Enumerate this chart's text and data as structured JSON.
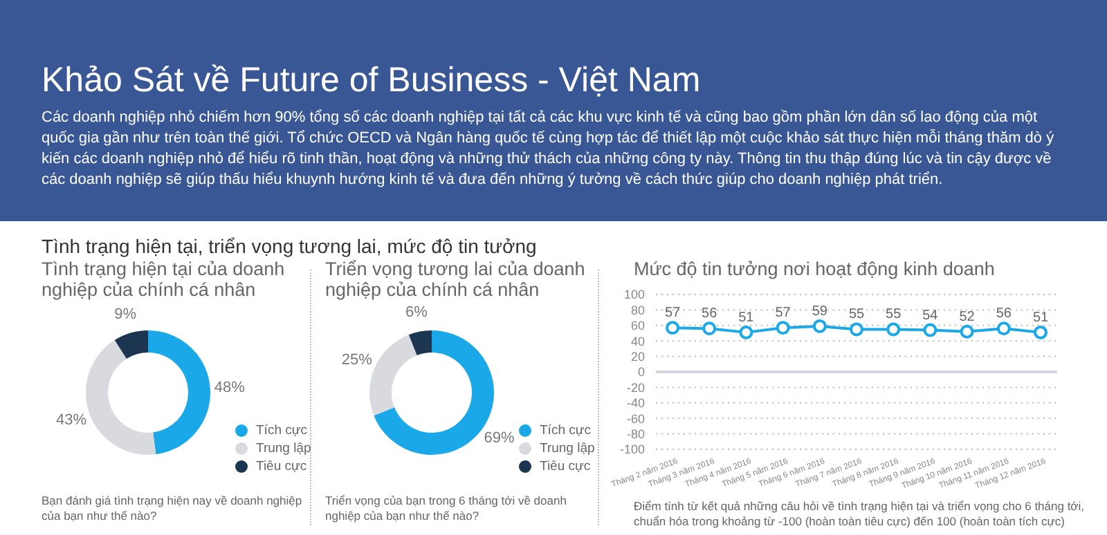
{
  "chart_data": [
    {
      "type": "other",
      "title": "Khảo Sát về Future of Business - Việt Nam",
      "subtitle": "Các doanh nghiệp nhỏ chiếm hơn 90% tổng số các doanh nghiệp tại tất cả các khu vực kinh tế và cũng bao gồm phần lớn dân số lao động của một quốc gia gần như trên toàn thế giới. Tổ chức OECD và Ngân hàng quốc tế cùng hợp tác để thiết lập một cuộc khảo sát thực hiện mỗi tháng thăm dò ý kiến các doanh nghiệp nhỏ để hiểu rõ tinh thần, hoạt động và những thử thách của những công ty này. Thông tin thu thập đúng lúc và tin cậy được về các doanh nghiệp sẽ giúp thấu hiểu khuynh hướng kinh tế và đưa đến những ý tưởng về cách thức giúp cho doanh nghiệp phát triển.",
      "annotations": [
        "Tình trạng hiện tại, triển vọng tương lai, mức độ tin tưởng"
      ]
    },
    {
      "type": "donut",
      "title": "Tình trạng hiện tại của doanh nghiệp của chính cá nhân",
      "categories": [
        "Tích cực",
        "Trung lập",
        "Tiêu cực"
      ],
      "values": [
        48,
        43,
        9
      ],
      "colors": [
        "#1aa8e8",
        "#d9dadf",
        "#1c3550"
      ],
      "value_labels": [
        "48%",
        "43%",
        "9%"
      ],
      "legend": "bottom right",
      "annotations": [
        "Bạn đánh giá tình trạng hiện nay về doanh nghiệp của bạn như thế nào?"
      ]
    },
    {
      "type": "donut",
      "title": "Triển vọng tương lai của doanh nghiệp của chính cá nhân",
      "categories": [
        "Tích cực",
        "Trung lập",
        "Tiêu cực"
      ],
      "values": [
        69,
        25,
        6
      ],
      "colors": [
        "#1aa8e8",
        "#d9dadf",
        "#1c3550"
      ],
      "value_labels": [
        "69%",
        "25%",
        "6%"
      ],
      "legend": "bottom right",
      "annotations": [
        "Triển vọng của bạn trong 6 tháng tới về doanh nghiệp của bạn như thế nào?"
      ]
    },
    {
      "type": "line",
      "title": "Mức độ tin tưởng nơi hoạt động kinh doanh",
      "categories": [
        "Tháng 2 năm 2016",
        "Tháng 3 năm 2016",
        "Tháng 4 năm 2016",
        "Tháng 5 năm 2016",
        "Tháng 6 năm 2016",
        "Tháng 7 năm 2016",
        "Tháng 8 năm 2016",
        "Tháng 9 năm 2016",
        "Tháng 10 năm 2016",
        "Tháng 11 năm 2016",
        "Tháng 12 năm 2016"
      ],
      "series": [
        {
          "color": "#1aa8e8",
          "values": [
            57,
            56,
            51,
            57,
            59,
            55,
            55,
            54,
            52,
            56,
            51
          ]
        }
      ],
      "ylim": [
        -100,
        100
      ],
      "yticks": [
        -100,
        -80,
        -60,
        -40,
        -20,
        0,
        20,
        40,
        60,
        80,
        100
      ],
      "grid": "y",
      "data_labels": true,
      "marker": "circle",
      "line_style": "solid",
      "legend": false,
      "ref_lines": [
        {
          "axis": "y",
          "value": 0,
          "color": "#d3d6de"
        }
      ],
      "annotations": [
        "Điểm tính từ kết quả những câu hỏi về tình trạng hiện tại và triển vọng cho 6 tháng tới, chuẩn hóa trong khoảng từ -100 (hoàn toàn tiêu cực) đến 100 (hoàn toàn tích cực)"
      ]
    }
  ]
}
